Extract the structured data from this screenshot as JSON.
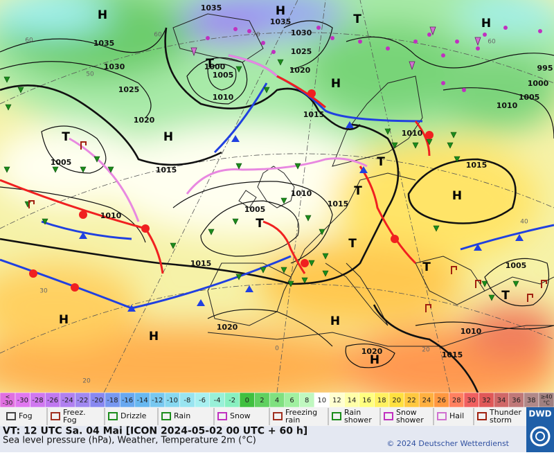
{
  "map": {
    "pressure_labels": [
      "1035",
      "1035",
      "1030",
      "1025",
      "1020",
      "1015",
      "1035",
      "1030",
      "1025",
      "1020",
      "1015",
      "1005",
      "1010",
      "1015",
      "1000",
      "1005",
      "1010",
      "1005",
      "1010",
      "1015",
      "1010",
      "1015",
      "1010",
      "1005",
      "1000",
      "995",
      "1005",
      "1010",
      "1015",
      "1020",
      "1020"
    ],
    "centers": [
      "H",
      "H",
      "H",
      "H",
      "H",
      "T",
      "T",
      "T",
      "T",
      "T",
      "H",
      "T",
      "T",
      "T",
      "T",
      "H",
      "H",
      "H",
      "H"
    ],
    "grid_labels": [
      "60",
      "50",
      "60",
      "70",
      "60",
      "40",
      "30",
      "20",
      "20",
      "0"
    ]
  },
  "color_scale": {
    "below": [
      "<",
      "-30"
    ],
    "above": [
      "≥40",
      "°C"
    ],
    "values": [
      -30,
      -28,
      -26,
      -24,
      -22,
      -20,
      -18,
      -16,
      -14,
      -12,
      -10,
      -8,
      -6,
      -4,
      -2,
      0,
      2,
      4,
      6,
      8,
      10,
      12,
      14,
      16,
      18,
      20,
      22,
      24,
      26,
      28,
      30,
      32,
      34,
      36,
      38
    ],
    "colors": [
      "#e078f0",
      "#d078f0",
      "#c078f0",
      "#b080f0",
      "#a088f0",
      "#8888f0",
      "#7898f0",
      "#68a8f0",
      "#68b8f0",
      "#78c8f0",
      "#88d8f0",
      "#98e4f0",
      "#a8f0f0",
      "#98f0d8",
      "#88f0c0",
      "#40c040",
      "#60d060",
      "#80e080",
      "#a0f0a0",
      "#c0f8c0",
      "#ffffff",
      "#ffffd0",
      "#ffffa8",
      "#ffff80",
      "#fff060",
      "#ffe040",
      "#ffc840",
      "#ffb040",
      "#ff9840",
      "#ff8060",
      "#f06060",
      "#e05858",
      "#d06868",
      "#c07878",
      "#b08888"
    ]
  },
  "legend": [
    "Fog",
    "Freez. Fog",
    "Drizzle",
    "Rain",
    "Snow",
    "Freezing rain",
    "Rain shower",
    "Snow shower",
    "Hail",
    "Thunder storm"
  ],
  "footer": {
    "valid_time": "VT: 12 UTC Sa.  04 Mai [ICON 2024-05-02  00 UTC + 60 h]",
    "description": "Sea level pressure (hPa), Weather, Temperature 2m (°C)",
    "copyright": "© 2024 Deutscher Wetterdienst",
    "logo": "DWD"
  }
}
